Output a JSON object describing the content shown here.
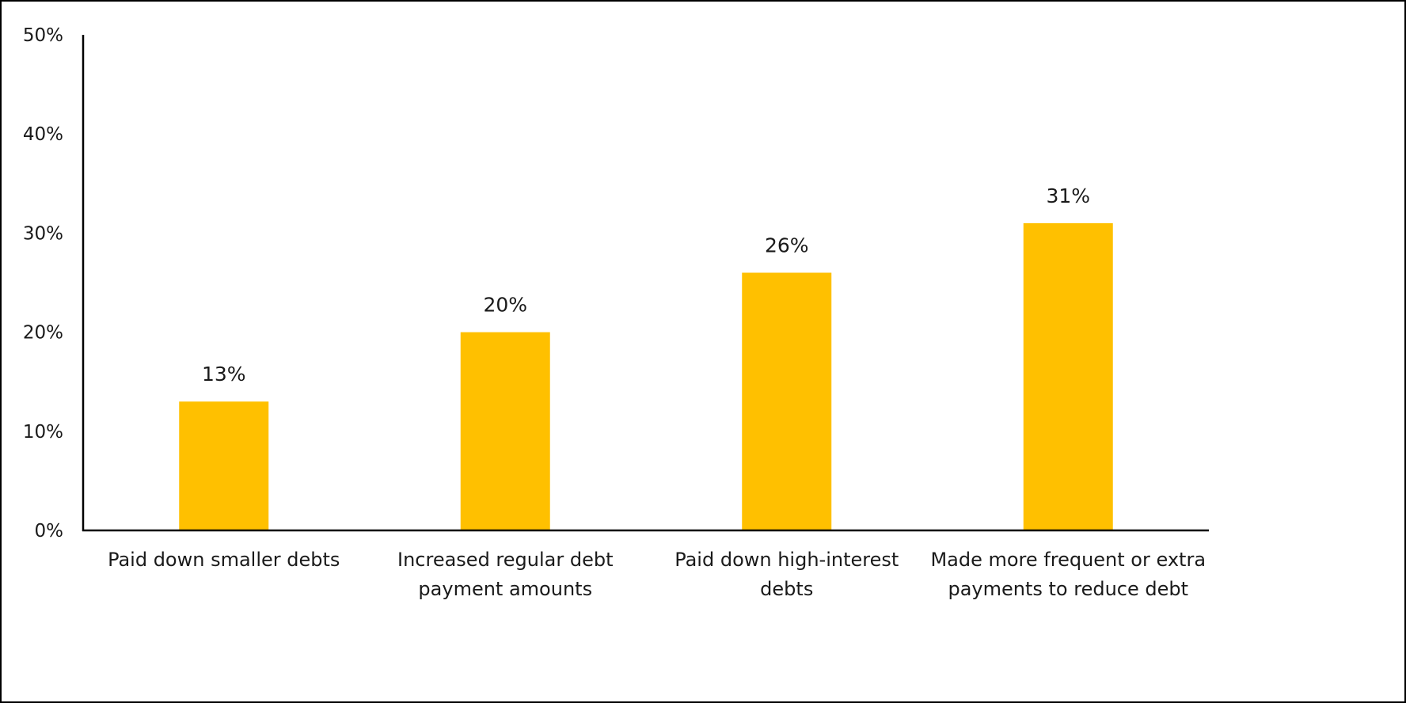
{
  "chart_data": {
    "type": "bar",
    "title": "",
    "xlabel": "",
    "ylabel": "",
    "categories": [
      "Paid down smaller debts",
      "Increased regular debt payment amounts",
      "Paid down high-interest debts",
      "Made more frequent or extra payments to reduce debt"
    ],
    "category_lines": [
      [
        "Paid down smaller debts"
      ],
      [
        "Increased regular debt",
        "payment amounts"
      ],
      [
        "Paid down high-interest",
        "debts"
      ],
      [
        "Made more frequent or extra",
        "payments to reduce debt"
      ]
    ],
    "values": [
      13,
      20,
      26,
      31
    ],
    "data_labels": [
      "13%",
      "20%",
      "26%",
      "31%"
    ],
    "ylim": [
      0,
      50
    ],
    "yticks": [
      0,
      10,
      20,
      30,
      40,
      50
    ],
    "ytick_labels": [
      "0%",
      "10%",
      "20%",
      "30%",
      "40%",
      "50%"
    ],
    "grid": false,
    "legend": "none",
    "bar_color": "#FFC000",
    "axis_color": "#000000",
    "text_color": "#1a1a1a"
  }
}
